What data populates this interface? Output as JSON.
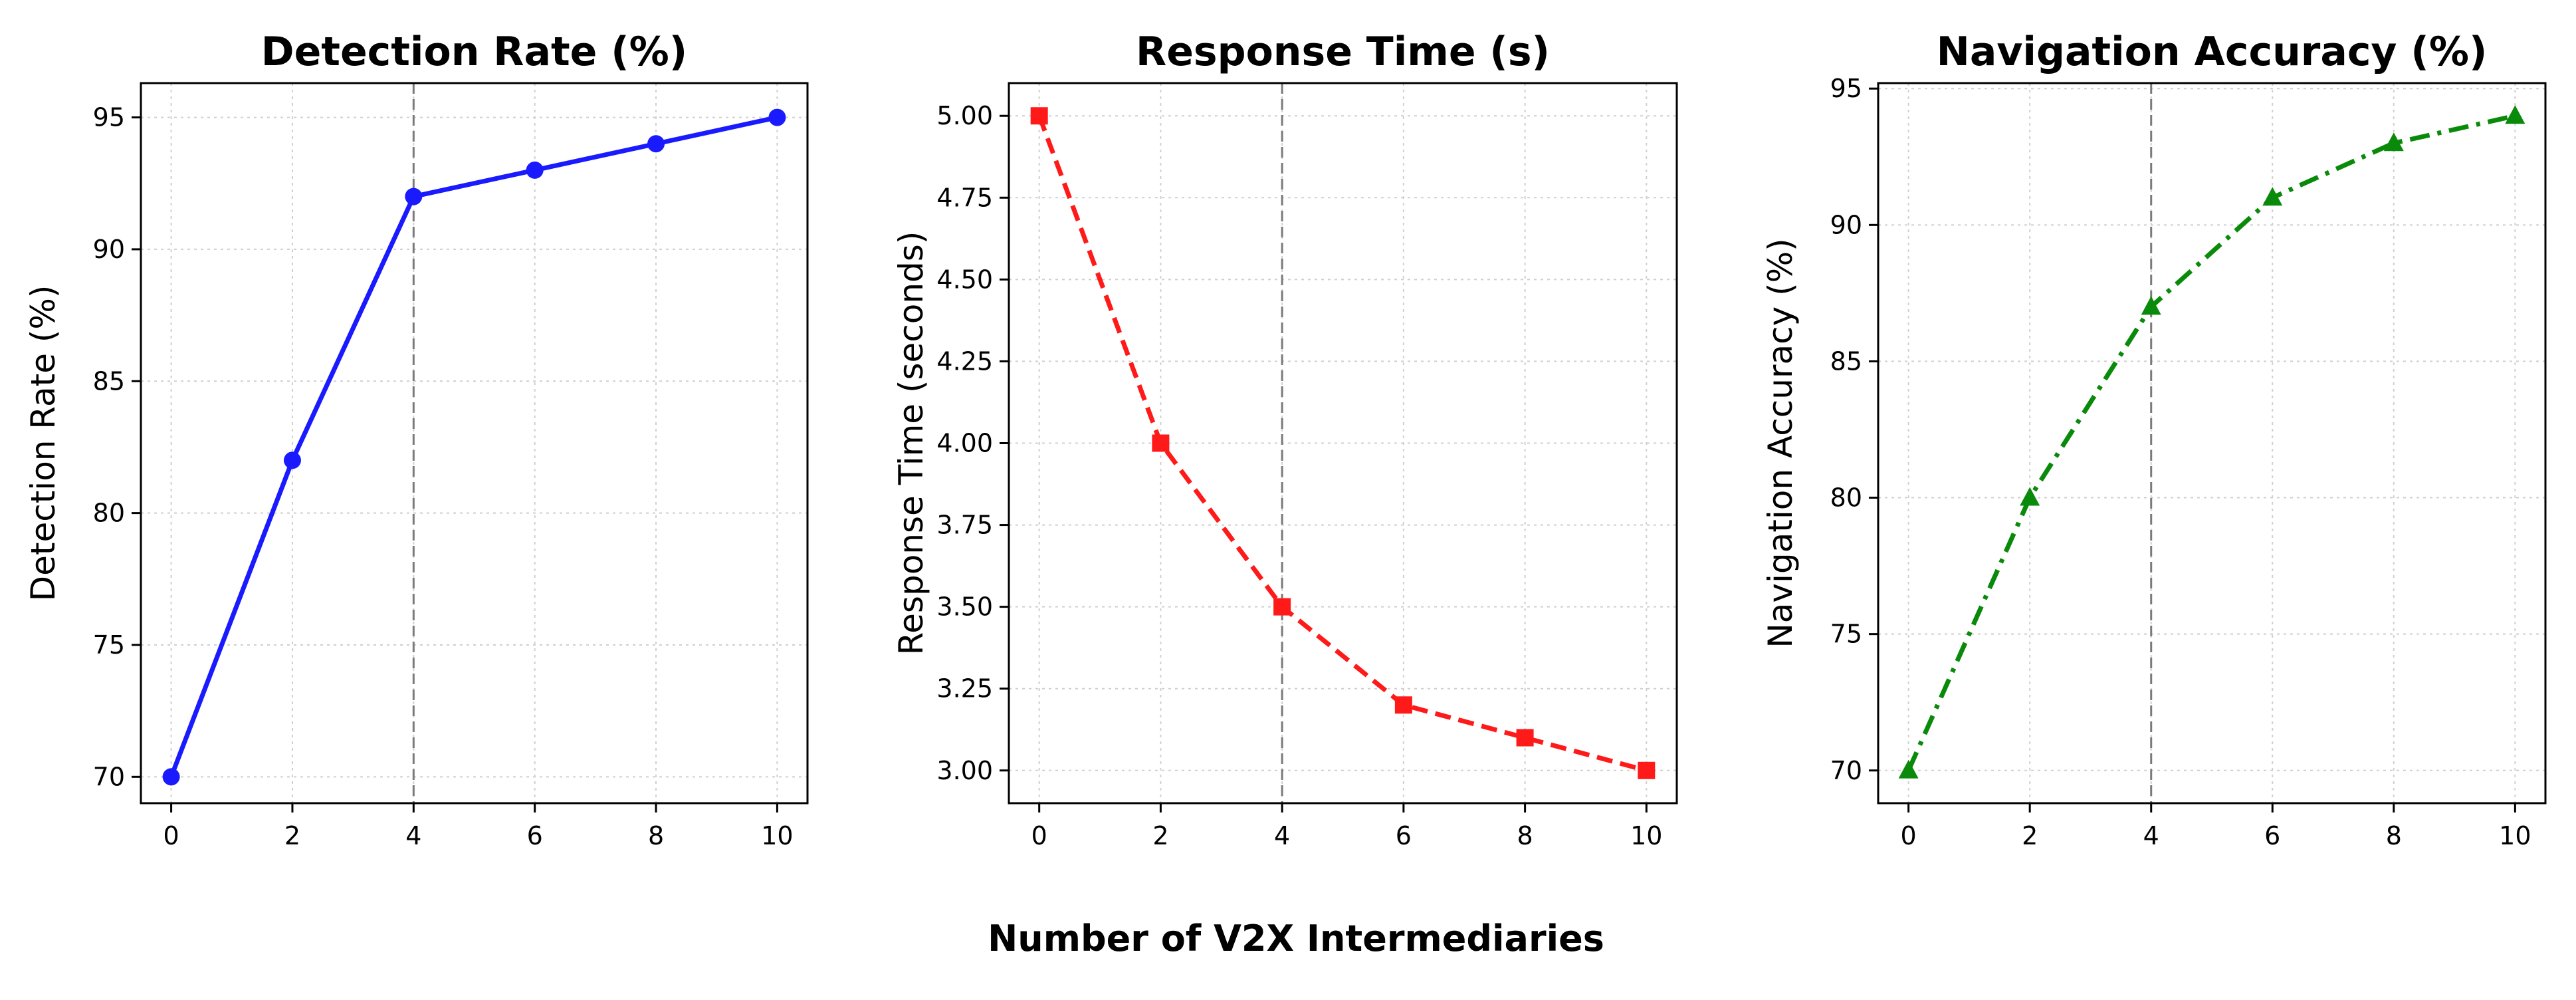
{
  "figure": {
    "shared_xlabel": "Number of V2X Intermediaries"
  },
  "chart_data": [
    {
      "type": "line",
      "title": "Detection Rate (%)",
      "xlabel": "",
      "ylabel": "Detection Rate (%)",
      "x": [
        0,
        2,
        4,
        6,
        8,
        10
      ],
      "series": [
        {
          "name": "Detection Rate",
          "values": [
            70,
            82,
            92,
            93,
            94,
            95
          ],
          "color": "#1a1aff",
          "marker": "circle",
          "linestyle": "solid"
        }
      ],
      "xlim": [
        -0.5,
        10.5
      ],
      "ylim": [
        69,
        96.3
      ],
      "xticks": [
        0,
        2,
        4,
        6,
        8,
        10
      ],
      "yticks": [
        70,
        75,
        80,
        85,
        90,
        95
      ],
      "ytick_labels": [
        "70",
        "75",
        "80",
        "85",
        "90",
        "95"
      ],
      "vline_x": 4,
      "grid": true
    },
    {
      "type": "line",
      "title": "Response Time (s)",
      "xlabel": "",
      "ylabel": "Response Time (seconds)",
      "x": [
        0,
        2,
        4,
        6,
        8,
        10
      ],
      "series": [
        {
          "name": "Response Time",
          "values": [
            5.0,
            4.0,
            3.5,
            3.2,
            3.1,
            3.0
          ],
          "color": "#ff1a1a",
          "marker": "square",
          "linestyle": "dashed"
        }
      ],
      "xlim": [
        -0.5,
        10.5
      ],
      "ylim": [
        2.9,
        5.1
      ],
      "xticks": [
        0,
        2,
        4,
        6,
        8,
        10
      ],
      "yticks": [
        3.0,
        3.25,
        3.5,
        3.75,
        4.0,
        4.25,
        4.5,
        4.75,
        5.0
      ],
      "ytick_labels": [
        "3.00",
        "3.25",
        "3.50",
        "3.75",
        "4.00",
        "4.25",
        "4.50",
        "4.75",
        "5.00"
      ],
      "vline_x": 4,
      "grid": true
    },
    {
      "type": "line",
      "title": "Navigation Accuracy (%)",
      "xlabel": "",
      "ylabel": "Navigation Accuracy (%)",
      "x": [
        0,
        2,
        4,
        6,
        8,
        10
      ],
      "series": [
        {
          "name": "Navigation Accuracy",
          "values": [
            70,
            80,
            87,
            91,
            93,
            94
          ],
          "color": "#0a8a0a",
          "marker": "triangle",
          "linestyle": "dashdot"
        }
      ],
      "xlim": [
        -0.5,
        10.5
      ],
      "ylim": [
        68.8,
        95.2
      ],
      "xticks": [
        0,
        2,
        4,
        6,
        8,
        10
      ],
      "yticks": [
        70,
        75,
        80,
        85,
        90,
        95
      ],
      "ytick_labels": [
        "70",
        "75",
        "80",
        "85",
        "90",
        "95"
      ],
      "vline_x": 4,
      "grid": true
    }
  ]
}
